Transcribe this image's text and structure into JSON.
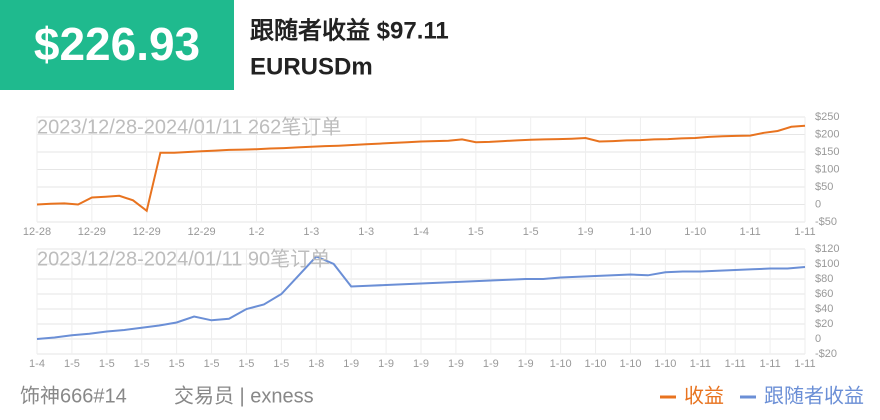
{
  "header": {
    "badge": "$226.93",
    "title": "跟随者收益 $97.11",
    "symbol": "EURUSDm"
  },
  "footer": {
    "trader": "饰神666#14",
    "role": "交易员 | exness"
  },
  "chart_data": [
    {
      "type": "line",
      "annotation": "2023/12/28-2024/01/11 262笔订单",
      "grid": true,
      "categories": [
        "12-28",
        null,
        null,
        null,
        "12-29",
        null,
        null,
        null,
        "12-29",
        null,
        null,
        null,
        "12-29",
        null,
        null,
        null,
        "1-2",
        null,
        null,
        null,
        "1-3",
        null,
        null,
        null,
        "1-3",
        null,
        null,
        null,
        "1-4",
        null,
        null,
        null,
        "1-5",
        null,
        null,
        null,
        "1-5",
        null,
        null,
        null,
        "1-9",
        null,
        null,
        null,
        "1-10",
        null,
        null,
        null,
        "1-10",
        null,
        null,
        null,
        "1-11",
        null,
        null,
        null,
        "1-11"
      ],
      "series": [
        {
          "name": "收益",
          "color": "#e8731f",
          "values": [
            0,
            2,
            3,
            0,
            20,
            22,
            25,
            12,
            -18,
            148,
            148,
            150,
            152,
            154,
            156,
            157,
            158,
            160,
            161,
            163,
            165,
            167,
            168,
            170,
            172,
            174,
            176,
            178,
            180,
            181,
            182,
            186,
            178,
            179,
            181,
            183,
            185,
            186,
            187,
            188,
            190,
            180,
            181,
            183,
            184,
            186,
            187,
            189,
            190,
            193,
            195,
            196,
            197,
            205,
            210,
            222,
            225
          ]
        }
      ],
      "ylim": [
        -50,
        250
      ],
      "yticks": [
        {
          "value": -50,
          "label": "-$50"
        },
        {
          "value": 0,
          "label": "0"
        },
        {
          "value": 50,
          "label": "$50"
        },
        {
          "value": 100,
          "label": "$100"
        },
        {
          "value": 150,
          "label": "$150"
        },
        {
          "value": 200,
          "label": "$200"
        },
        {
          "value": 250,
          "label": "$250"
        }
      ]
    },
    {
      "type": "line",
      "annotation": "2023/12/28-2024/01/11 90笔订单",
      "grid": true,
      "categories": [
        "1-4",
        null,
        "1-5",
        null,
        "1-5",
        null,
        "1-5",
        null,
        "1-5",
        null,
        "1-5",
        null,
        "1-5",
        null,
        "1-5",
        null,
        "1-8",
        null,
        "1-9",
        null,
        "1-9",
        null,
        "1-9",
        null,
        "1-9",
        null,
        "1-9",
        null,
        "1-9",
        null,
        "1-10",
        null,
        "1-10",
        null,
        "1-10",
        null,
        "1-10",
        null,
        "1-11",
        null,
        "1-11",
        null,
        "1-11",
        null,
        "1-11"
      ],
      "series": [
        {
          "name": "跟随者收益",
          "color": "#6b8fd6",
          "values": [
            0,
            2,
            5,
            7,
            10,
            12,
            15,
            18,
            22,
            30,
            25,
            27,
            40,
            46,
            60,
            85,
            110,
            100,
            70,
            71,
            72,
            73,
            74,
            75,
            76,
            77,
            78,
            79,
            80,
            80,
            82,
            83,
            84,
            85,
            86,
            85,
            89,
            90,
            90,
            91,
            92,
            93,
            94,
            94,
            96
          ]
        }
      ],
      "ylim": [
        -20,
        120
      ],
      "yticks": [
        {
          "value": -20,
          "label": "-$20"
        },
        {
          "value": 0,
          "label": "0"
        },
        {
          "value": 20,
          "label": "$20"
        },
        {
          "value": 40,
          "label": "$40"
        },
        {
          "value": 60,
          "label": "$60"
        },
        {
          "value": 80,
          "label": "$80"
        },
        {
          "value": 100,
          "label": "$100"
        },
        {
          "value": 120,
          "label": "$120"
        }
      ]
    }
  ]
}
